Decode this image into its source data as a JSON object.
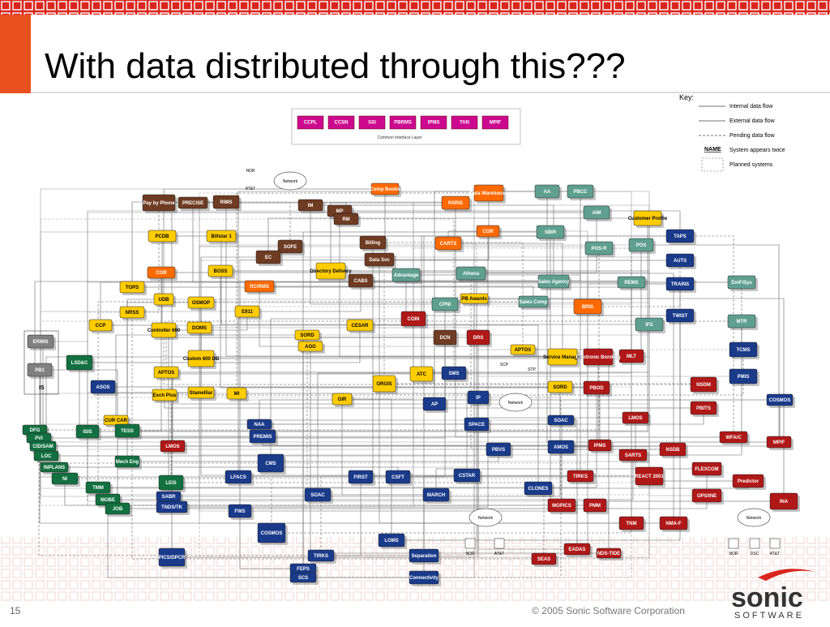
{
  "header": {
    "title": "With data distributed through this???"
  },
  "interface_layer": {
    "systems": [
      "CCPL",
      "CCSN",
      "SSI",
      "PBRMS",
      "IPMS",
      "TAN",
      "MPIF"
    ],
    "label": "Common Interface Layer"
  },
  "key": {
    "title": "Key:",
    "items": [
      "Internal data flow",
      "External data flow",
      "Pending data flow",
      "System appears twice",
      "Planned systems"
    ],
    "name_sample": "NAME"
  },
  "nodes": [
    {
      "label": "Pay by Phone"
    },
    {
      "label": "PRECISE"
    },
    {
      "label": "RIMS"
    },
    {
      "label": "SOFE"
    },
    {
      "label": "EC"
    },
    {
      "label": "Billing"
    },
    {
      "label": "Data Svc"
    },
    {
      "label": "CABS"
    },
    {
      "label": "IM"
    },
    {
      "label": "MP"
    },
    {
      "label": "RM"
    },
    {
      "label": "COIN"
    },
    {
      "label": "DCN"
    },
    {
      "label": "DRS"
    },
    {
      "label": "PCDB"
    },
    {
      "label": "Billstar 1"
    },
    {
      "label": "BOSS"
    },
    {
      "label": "TOPS"
    },
    {
      "label": "UDB"
    },
    {
      "label": "OSMOP"
    },
    {
      "label": "NRSS"
    },
    {
      "label": "E911"
    },
    {
      "label": "CCP"
    },
    {
      "label": "Controller 600"
    },
    {
      "label": "DOMS"
    },
    {
      "label": "Directory Delivery"
    },
    {
      "label": "SORD"
    },
    {
      "label": "AOG"
    },
    {
      "label": "Custom 600 DB"
    },
    {
      "label": "APTOS"
    },
    {
      "label": "Exch Plus"
    },
    {
      "label": "Stamelliar"
    },
    {
      "label": "MI"
    },
    {
      "label": "GIR"
    },
    {
      "label": "CESAR"
    },
    {
      "label": "ORGIS"
    },
    {
      "label": "ATC"
    },
    {
      "label": "PB Awards"
    },
    {
      "label": "APTOS"
    },
    {
      "label": "Service Manager"
    },
    {
      "label": "SORD"
    },
    {
      "label": "Customer Profile"
    },
    {
      "label": "CUR CAR"
    },
    {
      "label": "Comp Books"
    },
    {
      "label": "PARIS"
    },
    {
      "label": "Data Warehouse"
    },
    {
      "label": "CARTS"
    },
    {
      "label": "COR"
    },
    {
      "label": "COR"
    },
    {
      "label": "RC/RMS"
    },
    {
      "label": "BRIS"
    },
    {
      "label": "AA"
    },
    {
      "label": "PBCC"
    },
    {
      "label": "AIM"
    },
    {
      "label": "SBIR"
    },
    {
      "label": "POS-R"
    },
    {
      "label": "POS"
    },
    {
      "label": "Advantage"
    },
    {
      "label": "Athena"
    },
    {
      "label": "Sales Agency"
    },
    {
      "label": "Sales Comp"
    },
    {
      "label": "REMS"
    },
    {
      "label": "CPNI"
    },
    {
      "label": "IFS"
    },
    {
      "label": "EmFiSys"
    },
    {
      "label": "MTR"
    },
    {
      "label": "TAPS"
    },
    {
      "label": "AUTS"
    },
    {
      "label": "TRAINS"
    },
    {
      "label": "TWIST"
    },
    {
      "label": "TCMS"
    },
    {
      "label": "PMIS"
    },
    {
      "label": "COSMOS"
    },
    {
      "label": "SMS"
    },
    {
      "label": "AP"
    },
    {
      "label": "IP"
    },
    {
      "label": "SPACE"
    },
    {
      "label": "ASOS"
    },
    {
      "label": "NAA"
    },
    {
      "label": "PREMIS"
    },
    {
      "label": "CMS"
    },
    {
      "label": "LFACS"
    },
    {
      "label": "FIRST"
    },
    {
      "label": "CSFT"
    },
    {
      "label": "CSTAR"
    },
    {
      "label": "SOAC"
    },
    {
      "label": "MARCH"
    },
    {
      "label": "SABR"
    },
    {
      "label": "TNDS/TK"
    },
    {
      "label": "FWS"
    },
    {
      "label": "COSMOS"
    },
    {
      "label": "LOMS"
    },
    {
      "label": "PICS/DPCR"
    },
    {
      "label": "TIRKS"
    },
    {
      "label": "FEPS"
    },
    {
      "label": "SCS"
    },
    {
      "label": "AMOS"
    },
    {
      "label": "PBVS"
    },
    {
      "label": "CLONES"
    },
    {
      "label": "SOAC"
    },
    {
      "label": "Separation"
    },
    {
      "label": "Connectivity"
    },
    {
      "label": "MLT"
    },
    {
      "label": "Electronic Bonding"
    },
    {
      "label": "PBOD"
    },
    {
      "label": "NSDM"
    },
    {
      "label": "PBITS"
    },
    {
      "label": "LMOS"
    },
    {
      "label": "WFA/C"
    },
    {
      "label": "MP/F"
    },
    {
      "label": "NSDB"
    },
    {
      "label": "SARTS"
    },
    {
      "label": "LMOS"
    },
    {
      "label": "IPMS"
    },
    {
      "label": "FLEXCOM"
    },
    {
      "label": "REACT 2001"
    },
    {
      "label": "TIRKS"
    },
    {
      "label": "Predictor"
    },
    {
      "label": "OPS/INE"
    },
    {
      "label": "INA"
    },
    {
      "label": "MOPICS"
    },
    {
      "label": "PMM"
    },
    {
      "label": "TNM"
    },
    {
      "label": "NMA-F"
    },
    {
      "label": "EADAS"
    },
    {
      "label": "SEAS"
    },
    {
      "label": "NDS-TIDE"
    },
    {
      "label": "LSD&C"
    },
    {
      "label": "ISIS"
    },
    {
      "label": "TESS"
    },
    {
      "label": "DFG"
    },
    {
      "label": "PVI"
    },
    {
      "label": "CID/SAM"
    },
    {
      "label": "LOC"
    },
    {
      "label": "INPLANS"
    },
    {
      "label": "NI"
    },
    {
      "label": "Mech Eng"
    },
    {
      "label": "TMM"
    },
    {
      "label": "MOBE"
    },
    {
      "label": "JOB"
    },
    {
      "label": "LEIS"
    },
    {
      "label": "ERMIS"
    },
    {
      "label": "PB1"
    }
  ],
  "group_label": "IS",
  "networks": [
    "Network",
    "Network",
    "Network",
    "Network"
  ],
  "site_labels": [
    "NOR",
    "AT&T",
    "NOR",
    "AT&T",
    "NOR",
    "DSC",
    "AT&T",
    "SCP",
    "STP"
  ],
  "footer": {
    "page": "15",
    "copyright": "© 2005 Sonic Software Corporation",
    "logo": "sonic",
    "logo_sub": "SOFTWARE"
  }
}
